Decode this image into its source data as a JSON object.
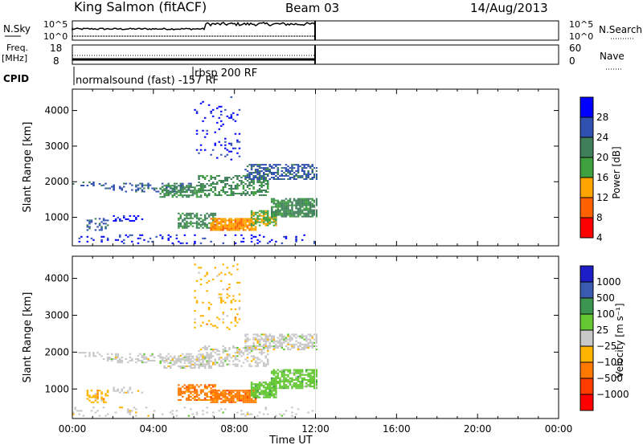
{
  "header": {
    "station": "King Salmon (fitACF)",
    "beam": "Beam 03",
    "date": "14/Aug/2013"
  },
  "status_panels": {
    "nsky_label": "N.Sky",
    "nsky_ticks": [
      "10^5",
      "10^0"
    ],
    "nsearch_label": "N.Search",
    "nsearch_ticks": [
      "10^5",
      "10^0"
    ],
    "freq_label": "Freq.",
    "freq_unit": "[MHz]",
    "freq_ticks": [
      "18",
      "8"
    ],
    "nave_label": "Nave",
    "nave_ticks": [
      "60",
      "0"
    ],
    "cpid_label": "CPID",
    "cpid_mode_1": "normalsound (fast) -157 RF",
    "cpid_mode_2": "rbsp 200 RF"
  },
  "chart_data": [
    {
      "type": "heatmap",
      "title": "",
      "ylabel": "Slant Range [km]",
      "xlabel": "",
      "ylim": [
        200,
        4600
      ],
      "xlim": [
        0,
        24
      ],
      "yticks": [
        "1000",
        "2000",
        "3000",
        "4000"
      ],
      "colorbar": {
        "label": "Power [dB]",
        "ticks": [
          "4",
          "8",
          "12",
          "16",
          "20",
          "24",
          "28"
        ],
        "colors": [
          "#0000ff",
          "#3050b0",
          "#3f7f5a",
          "#3fa040",
          "#ffa500",
          "#ff6000",
          "#ff0000"
        ]
      },
      "data_end_hour": 12
    },
    {
      "type": "heatmap",
      "title": "",
      "ylabel": "Slant Range [km]",
      "xlabel": "Time UT",
      "ylim": [
        200,
        4600
      ],
      "xlim": [
        0,
        24
      ],
      "yticks": [
        "1000",
        "2000",
        "3000",
        "4000"
      ],
      "xticks": [
        "00:00",
        "04:00",
        "08:00",
        "12:00",
        "16:00",
        "20:00",
        "00:00"
      ],
      "colorbar": {
        "label": "Velocity [m s⁻¹]",
        "ticks": [
          "1000",
          "500",
          "100",
          "25",
          "−25",
          "−100",
          "−500",
          "−1000"
        ],
        "colors": [
          "#1e1ec8",
          "#3a5ab0",
          "#3c9650",
          "#64c832",
          "#c8c8c8",
          "#ffb400",
          "#ff7800",
          "#ff3c00",
          "#ff0000"
        ]
      },
      "data_end_hour": 12
    }
  ]
}
